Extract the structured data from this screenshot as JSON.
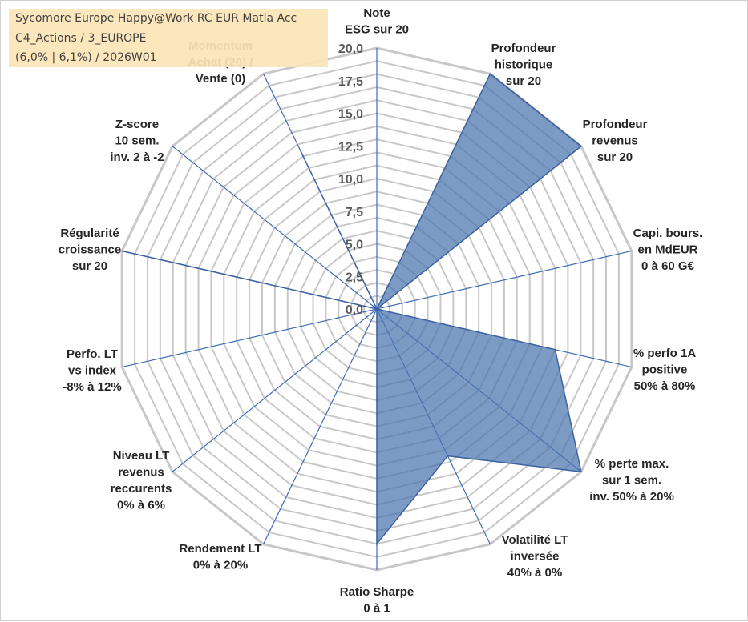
{
  "info": {
    "fund_name": "Sycomore Europe Happy@Work RC EUR Matla Acc",
    "category": "C4_Actions / 3_EUROPE",
    "stats": "(6,0% | 6,1%) / 2026W01"
  },
  "colors": {
    "fill": "#4a75ad",
    "stroke": "#3d62a0",
    "grid": "#c8c8c8",
    "spoke": "#3f6bb5",
    "info_bg": "#fbe5b6"
  },
  "chart_data": {
    "type": "radar",
    "rmax": 20,
    "ticks": [
      "0,0",
      "2,5",
      "5,0",
      "7,5",
      "10,0",
      "12,5",
      "15,0",
      "17,5",
      "20,0"
    ],
    "axes": [
      {
        "label": [
          "Note",
          "ESG sur 20"
        ],
        "value": 0
      },
      {
        "label": [
          "Profondeur",
          "historique",
          "sur 20"
        ],
        "value": 20
      },
      {
        "label": [
          "Profondeur",
          "revenus",
          "sur 20"
        ],
        "value": 20
      },
      {
        "label": [
          "Capi. bours.",
          "en MdEUR",
          "0 à 60 G€"
        ],
        "value": 0
      },
      {
        "label": [
          "% perfo 1A",
          "positive",
          "50% à 80%"
        ],
        "value": 14
      },
      {
        "label": [
          "% perte max.",
          "sur 1 sem.",
          "inv. 50% à 20%"
        ],
        "value": 20
      },
      {
        "label": [
          "Volatilité LT",
          "inversée",
          "40% à 0%"
        ],
        "value": 12.5
      },
      {
        "label": [
          "Ratio Sharpe",
          "0 à 1"
        ],
        "value": 18
      },
      {
        "label": [
          "Rendement LT",
          "0% à 20%"
        ],
        "value": 0
      },
      {
        "label": [
          "Niveau LT",
          "revenus",
          "reccurents",
          "0% à 6%"
        ],
        "value": 0
      },
      {
        "label": [
          "Perfo. LT",
          "vs index",
          "-8% à 12%"
        ],
        "value": 0
      },
      {
        "label": [
          "Régularité",
          "croissance",
          "sur 20"
        ],
        "value": 20
      },
      {
        "label": [
          "Z-score",
          "10 sem.",
          "inv. 2 à -2"
        ],
        "value": 0
      },
      {
        "label": [
          "Momentum",
          "Achat (20) /",
          "Vente (0)"
        ],
        "value": 13.5
      }
    ]
  }
}
